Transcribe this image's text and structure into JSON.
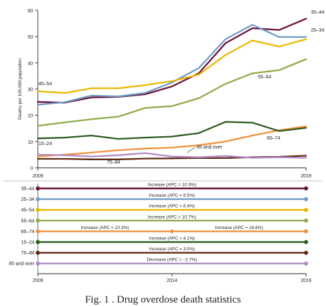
{
  "caption": "Fig. 1 . Drug overdose death statistics",
  "chart_data": [
    {
      "type": "line",
      "ylabel": "Deaths per 100,000 population",
      "ylim": [
        0,
        60
      ],
      "yticks": [
        0,
        10,
        20,
        30,
        40,
        50,
        60
      ],
      "xlim": [
        2009,
        2019
      ],
      "xtick_labels": [
        "2009",
        "2019"
      ],
      "grid": false,
      "x": [
        2009,
        2010,
        2011,
        2012,
        2013,
        2014,
        2015,
        2016,
        2017,
        2018,
        2019
      ],
      "series": [
        {
          "name": "35–44",
          "color": "#6b1238",
          "values": [
            25.1,
            24.8,
            26.8,
            27.0,
            28.0,
            31.0,
            36.0,
            47.5,
            53.2,
            52.5,
            56.8
          ]
        },
        {
          "name": "25–34",
          "color": "#6f9cc6",
          "values": [
            24.0,
            25.0,
            27.5,
            27.2,
            28.5,
            32.5,
            38.0,
            49.0,
            54.5,
            49.8,
            49.8
          ]
        },
        {
          "name": "45–54",
          "color": "#e8b800",
          "values": [
            29.2,
            28.5,
            30.3,
            30.3,
            31.5,
            33.0,
            35.5,
            43.0,
            48.5,
            46.2,
            49.0
          ]
        },
        {
          "name": "55–64",
          "color": "#8fab49",
          "values": [
            16.0,
            17.3,
            18.5,
            19.5,
            22.8,
            23.5,
            26.5,
            32.0,
            36.0,
            37.2,
            41.4
          ]
        },
        {
          "name": "65–74",
          "color": "#f0913a",
          "values": [
            4.3,
            5.0,
            5.8,
            6.7,
            7.3,
            7.7,
            8.6,
            10.0,
            12.3,
            14.3,
            15.8
          ]
        },
        {
          "name": "15–24",
          "color": "#2f5c1e",
          "values": [
            11.2,
            11.5,
            12.3,
            11.0,
            11.5,
            11.9,
            13.2,
            17.5,
            17.2,
            14.0,
            15.2
          ]
        },
        {
          "name": "75–84",
          "color": "#5e2a12",
          "values": [
            3.4,
            3.4,
            3.2,
            3.2,
            3.5,
            3.6,
            3.7,
            3.7,
            4.0,
            4.2,
            4.6
          ]
        },
        {
          "name": "85 and over",
          "color": "#b28ac4",
          "values": [
            5.0,
            4.8,
            4.3,
            4.8,
            5.6,
            4.3,
            4.0,
            4.5,
            3.8,
            4.0,
            3.8
          ]
        }
      ],
      "annotations": [
        "35–44",
        "25–34",
        "45–54",
        "55–64",
        "65–74",
        "15–24",
        "75–84",
        "85 and over"
      ]
    },
    {
      "type": "line",
      "xlim": [
        2009,
        2019
      ],
      "xtick_labels": [
        "2009",
        "2014",
        "2019"
      ],
      "rows": [
        {
          "label": "35–44",
          "color": "#6b1238",
          "annotations": [
            {
              "text": "Increase (APC = 10.3%)",
              "x": 2014
            }
          ],
          "breakpoint": null
        },
        {
          "label": "25–34",
          "color": "#6f9cc6",
          "annotations": [
            {
              "text": "Increase (APC = 9.5%)",
              "x": 2014
            }
          ],
          "breakpoint": null
        },
        {
          "label": "45–54",
          "color": "#e8b800",
          "annotations": [
            {
              "text": "Increase (APC = 6.4%)",
              "x": 2014
            }
          ],
          "breakpoint": null
        },
        {
          "label": "55–64",
          "color": "#8fab49",
          "annotations": [
            {
              "text": "Increase (APC = 10.7%)",
              "x": 2014
            }
          ],
          "breakpoint": null
        },
        {
          "label": "65–74",
          "color": "#f0913a",
          "annotations": [
            {
              "text": "Increase (APC = 10.3%)",
              "x": 2011.5
            },
            {
              "text": "Increase (APC = 16.6%)",
              "x": 2016.5
            }
          ],
          "breakpoint": 2014
        },
        {
          "label": "15–24",
          "color": "#2f5c1e",
          "annotations": [
            {
              "text": "Increase (APC = 4.1%)",
              "x": 2014
            }
          ],
          "breakpoint": null
        },
        {
          "label": "75–84",
          "color": "#5e2a12",
          "annotations": [
            {
              "text": "Increase (APC = 3.0%)",
              "x": 2014
            }
          ],
          "breakpoint": null
        },
        {
          "label": "85 and over",
          "color": "#b28ac4",
          "annotations": [
            {
              "text": "Decrease (APC = –2.7%)",
              "x": 2014
            }
          ],
          "breakpoint": null
        }
      ]
    }
  ]
}
